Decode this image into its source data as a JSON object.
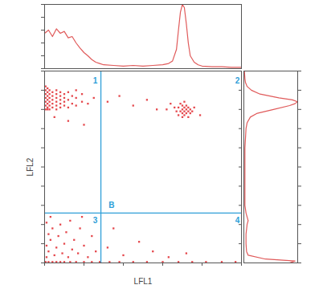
{
  "chart_data": [
    {
      "type": "scatter",
      "x_label": "LFL1",
      "y_label": "LFL2",
      "xlim": [
        0,
        100
      ],
      "ylim": [
        0,
        100
      ],
      "xticks": [
        0,
        20,
        40,
        60,
        80,
        100
      ],
      "yticks": [
        0,
        10,
        20,
        30,
        40,
        50,
        60,
        70,
        80,
        90,
        100
      ],
      "tick_labels": false,
      "marker": "square",
      "color": "#e5484d",
      "quadrants": {
        "x": 28.6,
        "y": 26,
        "color": "#2f9fd8"
      },
      "annotations": [
        {
          "text": "1",
          "x": 25.7,
          "y": 95
        },
        {
          "text": "2",
          "x": 98,
          "y": 95
        },
        {
          "text": "3",
          "x": 25.7,
          "y": 22
        },
        {
          "text": "4",
          "x": 98,
          "y": 22
        },
        {
          "text": "B",
          "x": 34,
          "y": 30
        }
      ],
      "points": [
        [
          0.5,
          80
        ],
        [
          0.5,
          82
        ],
        [
          0.5,
          84
        ],
        [
          0.5,
          86
        ],
        [
          0.5,
          88
        ],
        [
          0.5,
          90
        ],
        [
          0.5,
          92
        ],
        [
          1.5,
          80
        ],
        [
          1.5,
          81
        ],
        [
          1.5,
          83
        ],
        [
          1.5,
          85
        ],
        [
          1.5,
          87
        ],
        [
          1.5,
          89
        ],
        [
          1.5,
          91
        ],
        [
          2.5,
          80
        ],
        [
          2.5,
          82
        ],
        [
          2.5,
          84
        ],
        [
          2.5,
          86
        ],
        [
          2.5,
          88
        ],
        [
          2.5,
          90
        ],
        [
          4,
          81
        ],
        [
          4,
          83
        ],
        [
          4,
          85
        ],
        [
          4,
          87
        ],
        [
          4,
          89
        ],
        [
          6,
          80
        ],
        [
          6,
          82
        ],
        [
          6,
          84
        ],
        [
          6,
          86
        ],
        [
          6,
          88
        ],
        [
          6,
          90
        ],
        [
          8,
          81
        ],
        [
          8,
          83
        ],
        [
          8,
          85
        ],
        [
          8,
          87
        ],
        [
          8,
          89
        ],
        [
          10,
          82
        ],
        [
          10,
          84
        ],
        [
          10,
          86
        ],
        [
          10,
          88
        ],
        [
          12,
          81
        ],
        [
          12,
          85
        ],
        [
          12,
          89
        ],
        [
          14,
          83
        ],
        [
          14,
          87
        ],
        [
          16,
          82
        ],
        [
          16,
          86
        ],
        [
          16,
          90
        ],
        [
          19,
          84
        ],
        [
          19,
          88
        ],
        [
          22,
          83
        ],
        [
          25,
          86
        ],
        [
          32,
          84
        ],
        [
          38,
          87
        ],
        [
          45,
          82
        ],
        [
          52,
          85
        ],
        [
          57,
          80
        ],
        [
          67,
          79
        ],
        [
          68,
          77
        ],
        [
          68,
          81
        ],
        [
          69,
          79
        ],
        [
          69,
          83
        ],
        [
          70,
          76
        ],
        [
          70,
          78
        ],
        [
          70,
          80
        ],
        [
          70,
          82
        ],
        [
          71,
          77
        ],
        [
          71,
          79
        ],
        [
          71,
          81
        ],
        [
          71,
          84
        ],
        [
          72,
          78
        ],
        [
          72,
          80
        ],
        [
          72,
          82
        ],
        [
          73,
          76
        ],
        [
          73,
          79
        ],
        [
          73,
          81
        ],
        [
          74,
          78
        ],
        [
          74,
          80
        ],
        [
          75,
          79
        ],
        [
          66,
          81
        ],
        [
          76,
          81
        ],
        [
          62,
          80
        ],
        [
          64,
          83
        ],
        [
          79,
          77
        ],
        [
          5,
          76
        ],
        [
          12,
          74
        ],
        [
          20,
          72
        ],
        [
          0.5,
          0.5
        ],
        [
          2,
          0.5
        ],
        [
          4,
          0.5
        ],
        [
          6,
          0.5
        ],
        [
          8,
          0.5
        ],
        [
          10,
          0.5
        ],
        [
          13,
          0.5
        ],
        [
          16,
          0.5
        ],
        [
          20,
          0.5
        ],
        [
          24,
          0.5
        ],
        [
          28,
          0.5
        ],
        [
          33,
          0.5
        ],
        [
          38,
          0.5
        ],
        [
          45,
          0.5
        ],
        [
          52,
          0.5
        ],
        [
          60,
          0.5
        ],
        [
          68,
          0.5
        ],
        [
          75,
          0.5
        ],
        [
          82,
          0.5
        ],
        [
          90,
          0.5
        ],
        [
          97,
          0.5
        ],
        [
          1,
          3
        ],
        [
          2,
          6
        ],
        [
          1,
          9
        ],
        [
          3,
          12
        ],
        [
          2,
          15
        ],
        [
          4,
          18
        ],
        [
          1,
          21
        ],
        [
          5,
          4
        ],
        [
          6,
          8
        ],
        [
          7,
          14
        ],
        [
          8,
          20
        ],
        [
          9,
          5
        ],
        [
          10,
          10
        ],
        [
          11,
          16
        ],
        [
          12,
          3
        ],
        [
          13,
          22
        ],
        [
          14,
          7
        ],
        [
          15,
          12
        ],
        [
          17,
          5
        ],
        [
          18,
          18
        ],
        [
          20,
          9
        ],
        [
          22,
          3
        ],
        [
          24,
          14
        ],
        [
          26,
          6
        ],
        [
          19,
          24
        ],
        [
          3,
          24
        ],
        [
          32,
          8
        ],
        [
          40,
          4
        ],
        [
          48,
          11
        ],
        [
          55,
          6
        ],
        [
          63,
          3
        ],
        [
          72,
          5
        ],
        [
          35,
          18
        ]
      ]
    },
    {
      "type": "line",
      "orientation": "vertical",
      "color": "#e05a5a",
      "xlim": [
        0,
        100
      ],
      "ylim": [
        0,
        100
      ],
      "xticks": [
        0,
        20,
        40,
        60,
        80,
        100
      ],
      "yticks": [
        0,
        20,
        40,
        60,
        80,
        100
      ],
      "tick_labels": false,
      "x": [
        0,
        2,
        4,
        6,
        8,
        10,
        12,
        14,
        16,
        18,
        20,
        22,
        24,
        26,
        28,
        30,
        35,
        40,
        45,
        50,
        55,
        60,
        63,
        65,
        67,
        68,
        69,
        70,
        71,
        72,
        73,
        74,
        76,
        78,
        80,
        85,
        90,
        95,
        100
      ],
      "values": [
        55,
        60,
        50,
        62,
        55,
        58,
        48,
        50,
        40,
        32,
        25,
        20,
        14,
        10,
        8,
        6,
        5,
        4,
        5,
        4,
        5,
        6,
        8,
        12,
        30,
        60,
        88,
        100,
        95,
        70,
        40,
        20,
        10,
        6,
        4,
        3,
        3,
        2,
        2
      ]
    },
    {
      "type": "line",
      "orientation": "horizontal",
      "color": "#e05a5a",
      "xlim": [
        0,
        100
      ],
      "ylim": [
        0,
        100
      ],
      "xticks": [
        0,
        25,
        50,
        75,
        100
      ],
      "yticks": [
        0,
        10,
        20,
        30,
        40,
        50,
        60,
        70,
        80,
        90,
        100
      ],
      "tick_labels": false,
      "y": [
        0,
        1,
        2,
        4,
        6,
        10,
        15,
        20,
        22,
        24,
        26,
        28,
        30,
        35,
        40,
        50,
        60,
        65,
        70,
        73,
        76,
        78,
        80,
        82,
        83,
        84,
        85,
        86,
        88,
        90,
        92,
        94,
        96,
        100
      ],
      "values": [
        85,
        95,
        40,
        8,
        5,
        4,
        4,
        6,
        8,
        6,
        4,
        3,
        2,
        2,
        2,
        2,
        2,
        3,
        4,
        6,
        12,
        25,
        55,
        85,
        95,
        100,
        90,
        65,
        30,
        14,
        6,
        3,
        2,
        1
      ]
    }
  ]
}
